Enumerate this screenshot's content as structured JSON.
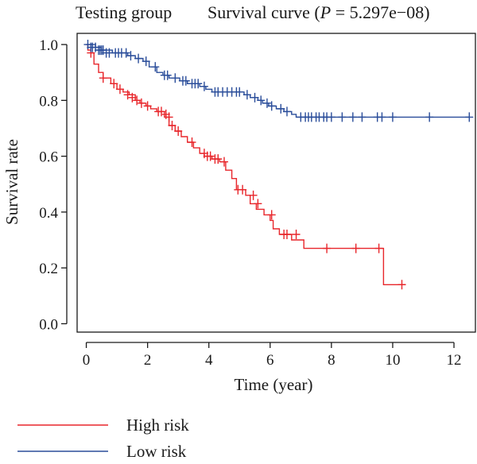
{
  "chart_data": {
    "type": "line",
    "group_label": "Testing group",
    "title": "Survival curve (",
    "p_symbol": "P",
    "p_value_text": " = 5.297e−08)",
    "xlabel": "Time (year)",
    "ylabel": "Survival rate",
    "xlim": [
      -0.3,
      12.7
    ],
    "ylim": [
      -0.03,
      1.04
    ],
    "xticks": [
      0,
      2,
      4,
      6,
      8,
      10,
      12
    ],
    "xtick_labels": [
      "0",
      "2",
      "4",
      "6",
      "8",
      "10",
      "12"
    ],
    "yticks": [
      0.0,
      0.2,
      0.4,
      0.6,
      0.8,
      1.0
    ],
    "ytick_labels": [
      "0.0",
      "0.2",
      "0.4",
      "0.6",
      "0.8",
      "1.0"
    ],
    "grid": false,
    "legend_position": "bottom-left",
    "series": [
      {
        "name": "High risk",
        "color": "#e8262b",
        "steps": [
          [
            0,
            1.0
          ],
          [
            0.05,
            0.98
          ],
          [
            0.15,
            0.97
          ],
          [
            0.25,
            0.93
          ],
          [
            0.4,
            0.9
          ],
          [
            0.55,
            0.88
          ],
          [
            0.8,
            0.86
          ],
          [
            1.0,
            0.84
          ],
          [
            1.2,
            0.83
          ],
          [
            1.4,
            0.82
          ],
          [
            1.6,
            0.8
          ],
          [
            1.75,
            0.79
          ],
          [
            1.95,
            0.78
          ],
          [
            2.1,
            0.77
          ],
          [
            2.3,
            0.76
          ],
          [
            2.55,
            0.74
          ],
          [
            2.7,
            0.71
          ],
          [
            2.9,
            0.69
          ],
          [
            3.1,
            0.67
          ],
          [
            3.3,
            0.65
          ],
          [
            3.5,
            0.63
          ],
          [
            3.7,
            0.61
          ],
          [
            3.85,
            0.6
          ],
          [
            4.1,
            0.59
          ],
          [
            4.35,
            0.58
          ],
          [
            4.55,
            0.55
          ],
          [
            4.75,
            0.52
          ],
          [
            4.9,
            0.48
          ],
          [
            5.2,
            0.46
          ],
          [
            5.35,
            0.43
          ],
          [
            5.55,
            0.41
          ],
          [
            5.8,
            0.39
          ],
          [
            6.0,
            0.37
          ],
          [
            6.1,
            0.34
          ],
          [
            6.3,
            0.32
          ],
          [
            6.7,
            0.3
          ],
          [
            7.1,
            0.27
          ],
          [
            9.7,
            0.14
          ],
          [
            10.3,
            0.14
          ]
        ],
        "censored": [
          [
            0.15,
            0.97
          ],
          [
            0.55,
            0.88
          ],
          [
            0.9,
            0.86
          ],
          [
            1.1,
            0.84
          ],
          [
            1.35,
            0.82
          ],
          [
            1.5,
            0.81
          ],
          [
            1.65,
            0.8
          ],
          [
            1.8,
            0.79
          ],
          [
            2.0,
            0.78
          ],
          [
            2.35,
            0.76
          ],
          [
            2.45,
            0.76
          ],
          [
            2.6,
            0.75
          ],
          [
            2.7,
            0.74
          ],
          [
            2.8,
            0.71
          ],
          [
            3.0,
            0.69
          ],
          [
            3.45,
            0.65
          ],
          [
            3.85,
            0.61
          ],
          [
            3.95,
            0.6
          ],
          [
            4.05,
            0.6
          ],
          [
            4.2,
            0.59
          ],
          [
            4.3,
            0.59
          ],
          [
            4.5,
            0.58
          ],
          [
            4.95,
            0.48
          ],
          [
            5.1,
            0.48
          ],
          [
            5.45,
            0.46
          ],
          [
            5.6,
            0.43
          ],
          [
            6.05,
            0.39
          ],
          [
            6.45,
            0.32
          ],
          [
            6.55,
            0.32
          ],
          [
            6.85,
            0.32
          ],
          [
            7.85,
            0.27
          ],
          [
            8.8,
            0.27
          ],
          [
            9.55,
            0.27
          ],
          [
            10.3,
            0.14
          ]
        ]
      },
      {
        "name": "Low risk",
        "color": "#2a4d9a",
        "steps": [
          [
            0,
            1.0
          ],
          [
            0.3,
            0.99
          ],
          [
            0.5,
            0.98
          ],
          [
            0.85,
            0.97
          ],
          [
            1.35,
            0.96
          ],
          [
            1.6,
            0.95
          ],
          [
            1.85,
            0.94
          ],
          [
            2.05,
            0.92
          ],
          [
            2.3,
            0.9
          ],
          [
            2.5,
            0.89
          ],
          [
            2.7,
            0.88
          ],
          [
            3.05,
            0.87
          ],
          [
            3.3,
            0.86
          ],
          [
            3.7,
            0.85
          ],
          [
            3.9,
            0.84
          ],
          [
            4.1,
            0.83
          ],
          [
            5.15,
            0.82
          ],
          [
            5.35,
            0.81
          ],
          [
            5.6,
            0.8
          ],
          [
            5.75,
            0.79
          ],
          [
            5.95,
            0.78
          ],
          [
            6.2,
            0.77
          ],
          [
            6.45,
            0.76
          ],
          [
            6.7,
            0.75
          ],
          [
            6.85,
            0.74
          ],
          [
            12.5,
            0.74
          ]
        ],
        "censored": [
          [
            0.05,
            1.0
          ],
          [
            0.15,
            0.99
          ],
          [
            0.2,
            0.99
          ],
          [
            0.3,
            0.99
          ],
          [
            0.4,
            0.98
          ],
          [
            0.45,
            0.98
          ],
          [
            0.5,
            0.98
          ],
          [
            0.55,
            0.98
          ],
          [
            0.65,
            0.97
          ],
          [
            0.75,
            0.97
          ],
          [
            0.95,
            0.97
          ],
          [
            1.05,
            0.97
          ],
          [
            1.15,
            0.97
          ],
          [
            1.3,
            0.97
          ],
          [
            1.45,
            0.96
          ],
          [
            1.7,
            0.95
          ],
          [
            1.95,
            0.94
          ],
          [
            2.25,
            0.92
          ],
          [
            2.55,
            0.89
          ],
          [
            2.65,
            0.89
          ],
          [
            2.9,
            0.88
          ],
          [
            3.15,
            0.87
          ],
          [
            3.25,
            0.87
          ],
          [
            3.45,
            0.86
          ],
          [
            3.55,
            0.86
          ],
          [
            3.65,
            0.86
          ],
          [
            3.85,
            0.85
          ],
          [
            4.2,
            0.83
          ],
          [
            4.3,
            0.83
          ],
          [
            4.45,
            0.83
          ],
          [
            4.6,
            0.83
          ],
          [
            4.75,
            0.83
          ],
          [
            4.9,
            0.83
          ],
          [
            5.0,
            0.83
          ],
          [
            5.25,
            0.82
          ],
          [
            5.5,
            0.81
          ],
          [
            5.7,
            0.8
          ],
          [
            5.9,
            0.79
          ],
          [
            6.05,
            0.78
          ],
          [
            6.35,
            0.77
          ],
          [
            6.55,
            0.76
          ],
          [
            7.0,
            0.74
          ],
          [
            7.15,
            0.74
          ],
          [
            7.25,
            0.74
          ],
          [
            7.35,
            0.74
          ],
          [
            7.5,
            0.74
          ],
          [
            7.6,
            0.74
          ],
          [
            7.75,
            0.74
          ],
          [
            7.85,
            0.74
          ],
          [
            8.0,
            0.74
          ],
          [
            8.35,
            0.74
          ],
          [
            8.7,
            0.74
          ],
          [
            9.0,
            0.74
          ],
          [
            9.5,
            0.74
          ],
          [
            9.65,
            0.74
          ],
          [
            10.0,
            0.74
          ],
          [
            11.2,
            0.74
          ],
          [
            12.5,
            0.74
          ]
        ]
      }
    ]
  }
}
